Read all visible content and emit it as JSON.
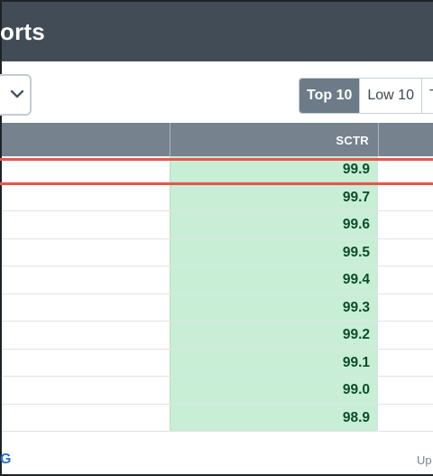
{
  "header": {
    "title": "orts"
  },
  "controls": {
    "dropdown_icon": "chevron-down-icon",
    "segment_buttons": [
      {
        "label": "Top 10",
        "active": true
      },
      {
        "label": "Low 10",
        "active": false
      },
      {
        "label": "T",
        "active": false
      }
    ]
  },
  "table": {
    "columns": [
      {
        "label": ""
      },
      {
        "label": "SCTR"
      },
      {
        "label": ""
      }
    ],
    "rows": [
      {
        "sctr": "99.9"
      },
      {
        "sctr": "99.7"
      },
      {
        "sctr": "99.6"
      },
      {
        "sctr": "99.5"
      },
      {
        "sctr": "99.4"
      },
      {
        "sctr": "99.3"
      },
      {
        "sctr": "99.2"
      },
      {
        "sctr": "99.1"
      },
      {
        "sctr": "99.0"
      },
      {
        "sctr": "98.9"
      }
    ]
  },
  "footer": {
    "left_text": "G",
    "right_text": "Up"
  },
  "colors": {
    "header_bg": "#414c57",
    "table_header_bg": "#76838f",
    "sctr_cell_bg": "#c8efd5",
    "sctr_text": "#0b4d2c",
    "highlight": "#e05a52",
    "active_tab_bg": "#6d7b88"
  }
}
